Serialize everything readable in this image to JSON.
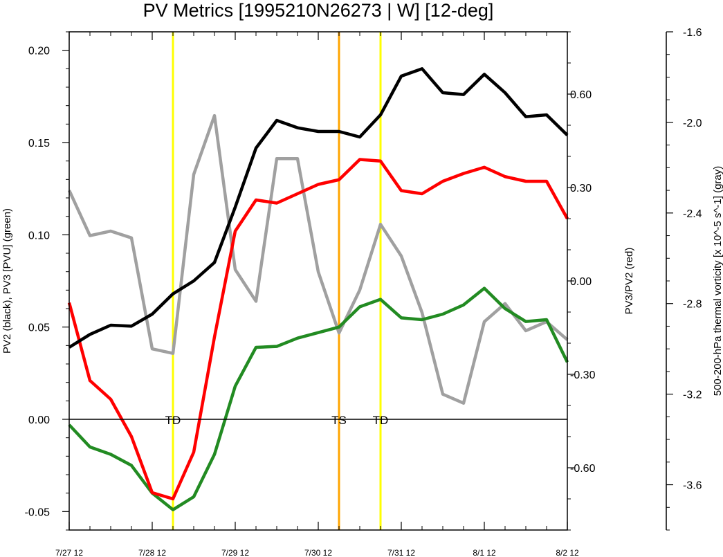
{
  "chart_data": {
    "type": "line",
    "title": "PV Metrics [1995210N26273 | W] [12-deg]",
    "x_tick_labels": [
      "7/27 12",
      "7/28 12",
      "7/29 12",
      "7/30 12",
      "7/31 12",
      "8/1 12",
      "8/2 12"
    ],
    "x_unit": "days since 7/27 12",
    "xlim": [
      0,
      6
    ],
    "left_axis": {
      "label": "PV2 (black), PV3 [PVU] (green)",
      "ylim": [
        -0.06,
        0.21
      ],
      "ticks": [
        -0.05,
        0.0,
        0.05,
        0.1,
        0.15,
        0.2
      ],
      "tick_labels": [
        "-0.05",
        "0.00",
        "0.05",
        "0.10",
        "0.15",
        "0.20"
      ]
    },
    "right_axis": {
      "label": "PV3/PV2 (red)",
      "ylim": [
        -0.8,
        0.8
      ],
      "ticks": [
        -0.6,
        -0.3,
        0.0,
        0.3,
        0.6
      ],
      "tick_labels": [
        "-0.60",
        "-0.30",
        "0.00",
        "0.30",
        "0.60"
      ]
    },
    "far_right_axis": {
      "label": "500-200-hPa thermal vorticity [x 10^-5 s^-1] (gray)",
      "ylim": [
        -3.8,
        -1.6
      ],
      "ticks": [
        -3.6,
        -3.2,
        -2.8,
        -2.4,
        -2.0,
        -1.6
      ],
      "tick_labels": [
        "-3.6",
        "-3.2",
        "-2.8",
        "-2.4",
        "-2.0",
        "-1.6"
      ]
    },
    "zero_line": 0.0,
    "x": [
      0,
      0.25,
      0.5,
      0.75,
      1.0,
      1.25,
      1.5,
      1.75,
      2.0,
      2.25,
      2.5,
      2.75,
      3.0,
      3.25,
      3.5,
      3.75,
      4.0,
      4.25,
      4.5,
      4.75,
      5.0,
      5.25,
      5.5,
      5.75,
      6.0
    ],
    "series": [
      {
        "name": "PV2",
        "color": "#000000",
        "axis": "left",
        "values": [
          0.039,
          0.046,
          0.051,
          0.0505,
          0.057,
          0.068,
          0.075,
          0.085,
          0.115,
          0.147,
          0.162,
          0.158,
          0.156,
          0.156,
          0.153,
          0.165,
          0.186,
          0.19,
          0.177,
          0.176,
          0.187,
          0.177,
          0.164,
          0.165,
          0.154
        ]
      },
      {
        "name": "PV3",
        "color": "#228b22",
        "axis": "left",
        "values": [
          -0.003,
          -0.015,
          -0.019,
          -0.025,
          -0.04,
          -0.049,
          -0.042,
          -0.019,
          0.018,
          0.039,
          0.0395,
          0.044,
          0.047,
          0.05,
          0.061,
          0.065,
          0.055,
          0.054,
          0.057,
          0.062,
          0.071,
          0.06,
          0.053,
          0.054,
          0.031
        ]
      },
      {
        "name": "PV3/PV2",
        "color": "#ff0000",
        "axis": "right",
        "values": [
          -0.07,
          -0.32,
          -0.38,
          -0.5,
          -0.68,
          -0.7,
          -0.55,
          -0.18,
          0.16,
          0.26,
          0.25,
          0.28,
          0.31,
          0.325,
          0.39,
          0.385,
          0.29,
          0.28,
          0.32,
          0.345,
          0.365,
          0.335,
          0.32,
          0.32,
          0.2
        ]
      },
      {
        "name": "thermal vorticity",
        "color": "#a0a0a0",
        "axis": "far_right",
        "values": [
          -2.3,
          -2.5,
          -2.48,
          -2.51,
          -3.0,
          -3.02,
          -2.23,
          -1.97,
          -2.65,
          -2.79,
          -2.16,
          -2.16,
          -2.66,
          -2.93,
          -2.74,
          -2.45,
          -2.59,
          -2.84,
          -3.2,
          -3.24,
          -2.88,
          -2.8,
          -2.92,
          -2.88,
          -2.96
        ]
      }
    ],
    "markers": [
      {
        "label": "TD",
        "x": 1.25,
        "color": "#ffff00"
      },
      {
        "label": "TS",
        "x": 3.25,
        "color": "#ffa500"
      },
      {
        "label": "TD",
        "x": 3.75,
        "color": "#ffff00"
      }
    ]
  }
}
